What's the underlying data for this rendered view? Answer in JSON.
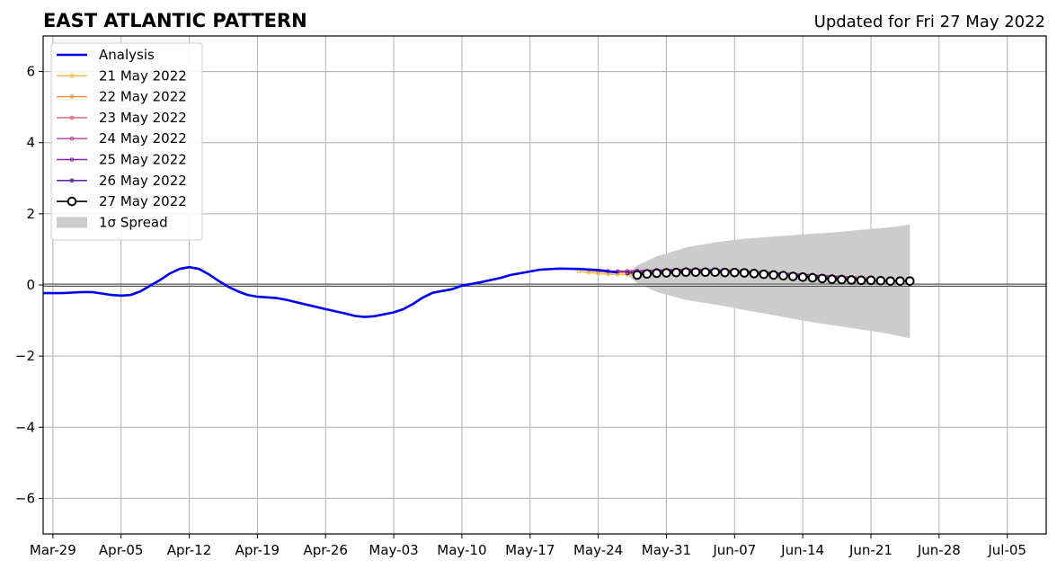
{
  "chart_data": {
    "type": "line",
    "title": "EAST ATLANTIC PATTERN",
    "subtitle": "Updated for Fri 27 May 2022",
    "xlabel": "",
    "ylabel": "",
    "ylim": [
      -7,
      7
    ],
    "xlim": [
      "2022-03-28",
      "2022-07-09"
    ],
    "grid": true,
    "legend_position": "top-left",
    "x_ticks": [
      {
        "date": "2022-03-29",
        "label": "Mar-29"
      },
      {
        "date": "2022-04-05",
        "label": "Apr-05"
      },
      {
        "date": "2022-04-12",
        "label": "Apr-12"
      },
      {
        "date": "2022-04-19",
        "label": "Apr-19"
      },
      {
        "date": "2022-04-26",
        "label": "Apr-26"
      },
      {
        "date": "2022-05-03",
        "label": "May-03"
      },
      {
        "date": "2022-05-10",
        "label": "May-10"
      },
      {
        "date": "2022-05-17",
        "label": "May-17"
      },
      {
        "date": "2022-05-24",
        "label": "May-24"
      },
      {
        "date": "2022-05-31",
        "label": "May-31"
      },
      {
        "date": "2022-06-07",
        "label": "Jun-07"
      },
      {
        "date": "2022-06-14",
        "label": "Jun-14"
      },
      {
        "date": "2022-06-21",
        "label": "Jun-21"
      },
      {
        "date": "2022-06-28",
        "label": "Jun-28"
      },
      {
        "date": "2022-07-05",
        "label": "Jul-05"
      }
    ],
    "y_ticks": [
      {
        "value": -6,
        "label": "−6"
      },
      {
        "value": -4,
        "label": "−4"
      },
      {
        "value": -2,
        "label": "−2"
      },
      {
        "value": 0,
        "label": "0"
      },
      {
        "value": 2,
        "label": "2"
      },
      {
        "value": 4,
        "label": "4"
      },
      {
        "value": 6,
        "label": "6"
      }
    ],
    "analysis": {
      "name": "Analysis",
      "color": "#0000ee",
      "points": [
        [
          "2022-03-28",
          -0.23
        ],
        [
          "2022-03-30",
          -0.23
        ],
        [
          "2022-04-01",
          -0.2
        ],
        [
          "2022-04-02",
          -0.2
        ],
        [
          "2022-04-04",
          -0.28
        ],
        [
          "2022-04-05",
          -0.3
        ],
        [
          "2022-04-06",
          -0.28
        ],
        [
          "2022-04-07",
          -0.18
        ],
        [
          "2022-04-08",
          -0.02
        ],
        [
          "2022-04-09",
          0.14
        ],
        [
          "2022-04-10",
          0.32
        ],
        [
          "2022-04-11",
          0.45
        ],
        [
          "2022-04-12",
          0.5
        ],
        [
          "2022-04-13",
          0.45
        ],
        [
          "2022-04-14",
          0.3
        ],
        [
          "2022-04-15",
          0.12
        ],
        [
          "2022-04-16",
          -0.05
        ],
        [
          "2022-04-17",
          -0.18
        ],
        [
          "2022-04-18",
          -0.28
        ],
        [
          "2022-04-19",
          -0.33
        ],
        [
          "2022-04-21",
          -0.37
        ],
        [
          "2022-04-22",
          -0.42
        ],
        [
          "2022-04-24",
          -0.55
        ],
        [
          "2022-04-26",
          -0.68
        ],
        [
          "2022-04-28",
          -0.8
        ],
        [
          "2022-04-29",
          -0.87
        ],
        [
          "2022-04-30",
          -0.9
        ],
        [
          "2022-05-01",
          -0.88
        ],
        [
          "2022-05-03",
          -0.77
        ],
        [
          "2022-05-04",
          -0.68
        ],
        [
          "2022-05-05",
          -0.53
        ],
        [
          "2022-05-06",
          -0.35
        ],
        [
          "2022-05-07",
          -0.22
        ],
        [
          "2022-05-09",
          -0.12
        ],
        [
          "2022-05-10",
          -0.02
        ],
        [
          "2022-05-12",
          0.08
        ],
        [
          "2022-05-14",
          0.2
        ],
        [
          "2022-05-15",
          0.28
        ],
        [
          "2022-05-17",
          0.38
        ],
        [
          "2022-05-18",
          0.43
        ],
        [
          "2022-05-20",
          0.46
        ],
        [
          "2022-05-22",
          0.45
        ],
        [
          "2022-05-24",
          0.42
        ],
        [
          "2022-05-26",
          0.35
        ]
      ]
    },
    "forecast_series": [
      {
        "name": "21 May 2022",
        "color": "#f7b844",
        "points": [
          [
            "2022-05-22",
            0.38
          ],
          [
            "2022-05-23",
            0.35
          ],
          [
            "2022-05-24",
            0.32
          ],
          [
            "2022-05-25",
            0.3
          ],
          [
            "2022-05-26",
            0.29
          ],
          [
            "2022-05-27",
            0.29
          ],
          [
            "2022-05-28",
            0.3
          ],
          [
            "2022-05-29",
            0.31
          ],
          [
            "2022-05-30",
            0.32
          ],
          [
            "2022-05-31",
            0.33
          ]
        ]
      },
      {
        "name": "22 May 2022",
        "color": "#f08a3c",
        "points": [
          [
            "2022-05-23",
            0.4
          ],
          [
            "2022-05-25",
            0.36
          ],
          [
            "2022-05-27",
            0.34
          ],
          [
            "2022-05-29",
            0.34
          ],
          [
            "2022-06-01",
            0.36
          ],
          [
            "2022-06-04",
            0.38
          ],
          [
            "2022-06-07",
            0.36
          ],
          [
            "2022-06-10",
            0.32
          ],
          [
            "2022-06-13",
            0.28
          ],
          [
            "2022-06-16",
            0.25
          ],
          [
            "2022-06-19",
            0.22
          ],
          [
            "2022-06-21",
            0.2
          ]
        ]
      },
      {
        "name": "23 May 2022",
        "color": "#e0587a",
        "points": [
          [
            "2022-05-24",
            0.4
          ],
          [
            "2022-05-26",
            0.38
          ],
          [
            "2022-05-28",
            0.37
          ],
          [
            "2022-05-31",
            0.39
          ],
          [
            "2022-06-03",
            0.41
          ],
          [
            "2022-06-06",
            0.4
          ],
          [
            "2022-06-09",
            0.36
          ],
          [
            "2022-06-12",
            0.32
          ],
          [
            "2022-06-15",
            0.28
          ],
          [
            "2022-06-18",
            0.24
          ],
          [
            "2022-06-20",
            0.21
          ]
        ]
      },
      {
        "name": "24 May 2022",
        "color": "#b0409a",
        "points": [
          [
            "2022-05-25",
            0.39
          ],
          [
            "2022-05-27",
            0.39
          ],
          [
            "2022-05-30",
            0.42
          ],
          [
            "2022-06-02",
            0.44
          ],
          [
            "2022-06-05",
            0.43
          ],
          [
            "2022-06-08",
            0.4
          ],
          [
            "2022-06-11",
            0.35
          ],
          [
            "2022-06-14",
            0.3
          ],
          [
            "2022-06-17",
            0.25
          ],
          [
            "2022-06-20",
            0.2
          ]
        ]
      },
      {
        "name": "25 May 2022",
        "color": "#8a20b0",
        "points": [
          [
            "2022-05-26",
            0.38
          ],
          [
            "2022-05-28",
            0.4
          ],
          [
            "2022-05-31",
            0.42
          ],
          [
            "2022-06-03",
            0.43
          ],
          [
            "2022-06-06",
            0.42
          ],
          [
            "2022-06-09",
            0.38
          ],
          [
            "2022-06-12",
            0.33
          ],
          [
            "2022-06-15",
            0.27
          ],
          [
            "2022-06-18",
            0.21
          ],
          [
            "2022-06-21",
            0.16
          ]
        ]
      },
      {
        "name": "26 May 2022",
        "color": "#4a0a8a",
        "points": [
          [
            "2022-05-27",
            0.33
          ],
          [
            "2022-05-30",
            0.37
          ],
          [
            "2022-06-02",
            0.39
          ],
          [
            "2022-06-05",
            0.39
          ],
          [
            "2022-06-08",
            0.36
          ],
          [
            "2022-06-11",
            0.31
          ],
          [
            "2022-06-14",
            0.25
          ],
          [
            "2022-06-17",
            0.19
          ],
          [
            "2022-06-20",
            0.14
          ],
          [
            "2022-06-23",
            0.1
          ]
        ]
      }
    ],
    "current_forecast": {
      "name": "27 May 2022",
      "color": "#000000",
      "points": [
        [
          "2022-05-28",
          0.28
        ],
        [
          "2022-05-29",
          0.31
        ],
        [
          "2022-05-30",
          0.33
        ],
        [
          "2022-05-31",
          0.34
        ],
        [
          "2022-06-01",
          0.35
        ],
        [
          "2022-06-02",
          0.36
        ],
        [
          "2022-06-03",
          0.36
        ],
        [
          "2022-06-04",
          0.36
        ],
        [
          "2022-06-05",
          0.36
        ],
        [
          "2022-06-06",
          0.35
        ],
        [
          "2022-06-07",
          0.35
        ],
        [
          "2022-06-08",
          0.34
        ],
        [
          "2022-06-09",
          0.32
        ],
        [
          "2022-06-10",
          0.3
        ],
        [
          "2022-06-11",
          0.28
        ],
        [
          "2022-06-12",
          0.26
        ],
        [
          "2022-06-13",
          0.24
        ],
        [
          "2022-06-14",
          0.22
        ],
        [
          "2022-06-15",
          0.2
        ],
        [
          "2022-06-16",
          0.18
        ],
        [
          "2022-06-17",
          0.16
        ],
        [
          "2022-06-18",
          0.15
        ],
        [
          "2022-06-19",
          0.14
        ],
        [
          "2022-06-20",
          0.13
        ],
        [
          "2022-06-21",
          0.13
        ],
        [
          "2022-06-22",
          0.12
        ],
        [
          "2022-06-23",
          0.11
        ],
        [
          "2022-06-24",
          0.11
        ],
        [
          "2022-06-25",
          0.11
        ]
      ]
    },
    "spread": {
      "name": "1σ Spread",
      "color": "#cccccc",
      "points": [
        [
          "2022-05-27",
          0.32,
          0.28
        ],
        [
          "2022-05-28",
          0.55,
          0.05
        ],
        [
          "2022-05-30",
          0.8,
          -0.2
        ],
        [
          "2022-06-02",
          1.05,
          -0.42
        ],
        [
          "2022-06-05",
          1.2,
          -0.55
        ],
        [
          "2022-06-08",
          1.3,
          -0.7
        ],
        [
          "2022-06-11",
          1.36,
          -0.85
        ],
        [
          "2022-06-14",
          1.42,
          -1.0
        ],
        [
          "2022-06-17",
          1.47,
          -1.13
        ],
        [
          "2022-06-20",
          1.55,
          -1.25
        ],
        [
          "2022-06-23",
          1.62,
          -1.38
        ],
        [
          "2022-06-25",
          1.7,
          -1.5
        ]
      ]
    },
    "legend": [
      {
        "label": "Analysis",
        "kind": "analysis"
      },
      {
        "label": "21 May 2022",
        "kind": "forecast",
        "color": "#f7b844"
      },
      {
        "label": "22 May 2022",
        "kind": "forecast",
        "color": "#f08a3c"
      },
      {
        "label": "23 May 2022",
        "kind": "forecast",
        "color": "#e0587a"
      },
      {
        "label": "24 May 2022",
        "kind": "forecast",
        "color": "#b0409a"
      },
      {
        "label": "25 May 2022",
        "kind": "forecast",
        "color": "#8a20b0"
      },
      {
        "label": "26 May 2022",
        "kind": "forecast",
        "color": "#4a0a8a"
      },
      {
        "label": "27 May 2022",
        "kind": "current"
      },
      {
        "label": "1σ Spread",
        "kind": "spread"
      }
    ]
  }
}
